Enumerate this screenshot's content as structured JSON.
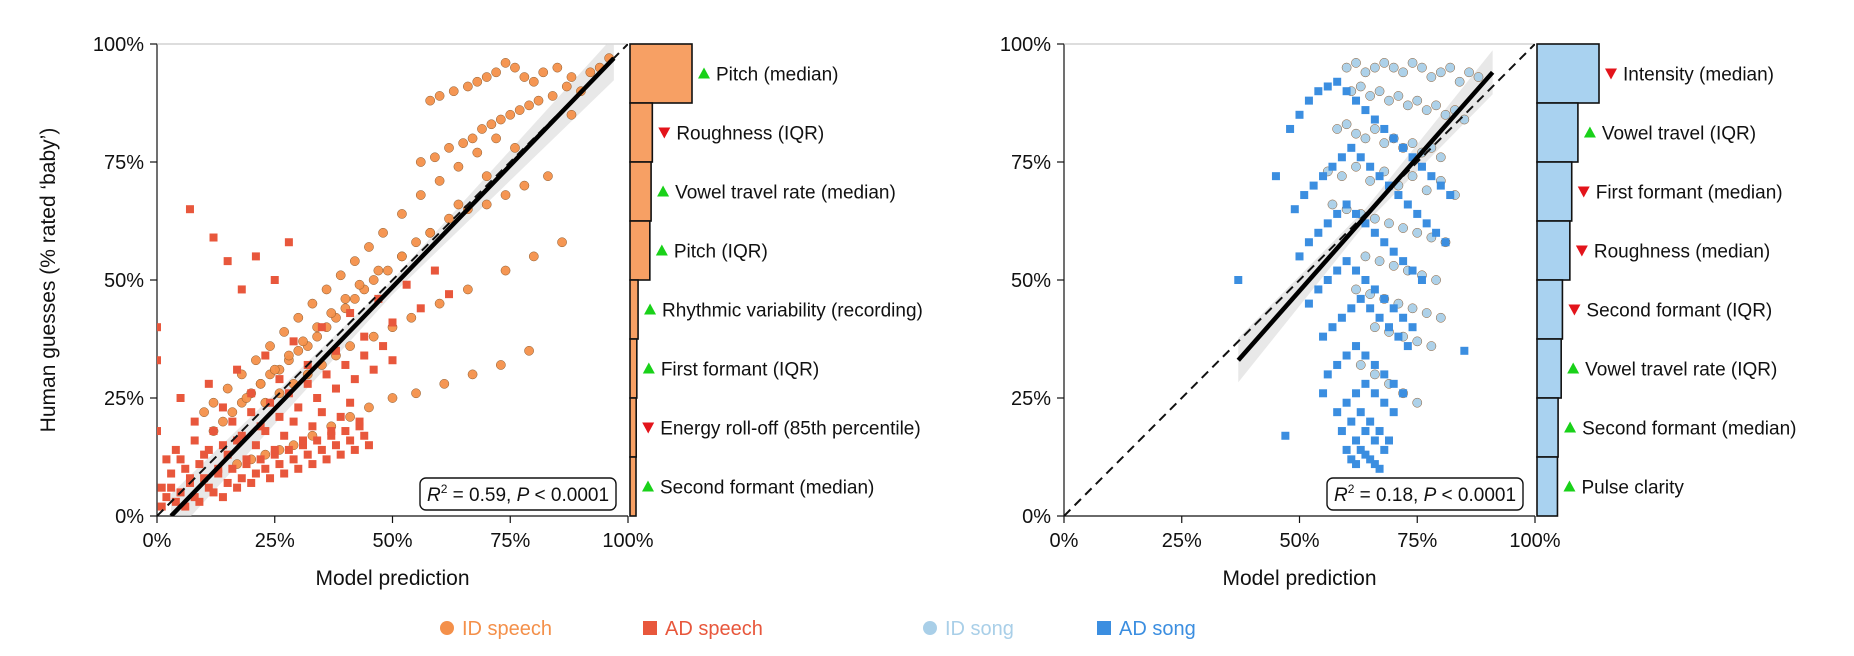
{
  "chart_data": [
    {
      "type": "scatter",
      "panel": "left",
      "xlabel": "Model prediction",
      "ylabel": "Human guesses (% rated ‘baby’)",
      "xlim": [
        0,
        100
      ],
      "ylim": [
        0,
        100
      ],
      "x_ticks": [
        "0%",
        "25%",
        "50%",
        "75%",
        "100%"
      ],
      "y_ticks": [
        "0%",
        "25%",
        "50%",
        "75%",
        "100%"
      ],
      "annotation": {
        "r2": "0.59",
        "p": "0.0001"
      },
      "fit_line": {
        "x": [
          3,
          97
        ],
        "y": [
          0,
          97
        ]
      },
      "identity_line": {
        "x": [
          0,
          100
        ],
        "y": [
          0,
          100
        ]
      },
      "series": [
        {
          "name": "ID speech",
          "marker": "circle",
          "color": "#f4904a",
          "x": [
            94,
            92,
            88,
            85,
            82,
            80,
            78,
            76,
            74,
            72,
            70,
            68,
            66,
            63,
            60,
            58,
            96,
            90,
            87,
            84,
            81,
            79,
            77,
            75,
            73,
            71,
            69,
            67,
            65,
            62,
            59,
            56,
            83,
            78,
            74,
            70,
            66,
            62,
            58,
            55,
            52,
            49,
            46,
            44,
            42,
            40,
            38,
            36,
            34,
            32,
            30,
            28,
            26,
            24,
            22,
            20,
            18,
            16,
            14,
            12,
            72,
            68,
            64,
            60,
            56,
            52,
            48,
            45,
            42,
            39,
            36,
            33,
            30,
            27,
            24,
            21,
            18,
            15,
            12,
            10,
            88,
            76,
            70,
            64,
            58,
            52,
            47,
            43,
            40,
            37,
            34,
            31,
            28,
            25,
            22,
            19,
            86,
            80,
            74,
            66,
            60,
            54,
            50,
            46,
            41,
            38,
            35,
            32,
            29,
            26,
            23,
            79,
            73,
            67,
            61,
            55,
            50,
            45,
            41,
            37,
            33,
            29,
            26,
            23,
            20,
            17
          ],
          "y": [
            95,
            94,
            93,
            95,
            94,
            92,
            93,
            95,
            96,
            94,
            93,
            92,
            91,
            90,
            89,
            88,
            97,
            90,
            91,
            89,
            88,
            87,
            86,
            85,
            84,
            83,
            82,
            80,
            79,
            78,
            76,
            75,
            72,
            70,
            68,
            66,
            65,
            63,
            60,
            58,
            55,
            52,
            50,
            48,
            46,
            44,
            42,
            40,
            38,
            36,
            35,
            33,
            31,
            30,
            28,
            26,
            24,
            22,
            20,
            18,
            80,
            77,
            74,
            71,
            68,
            64,
            60,
            57,
            54,
            51,
            48,
            45,
            42,
            39,
            36,
            33,
            30,
            27,
            24,
            22,
            85,
            78,
            72,
            66,
            60,
            55,
            52,
            49,
            46,
            43,
            40,
            37,
            34,
            31,
            28,
            25,
            58,
            55,
            52,
            48,
            45,
            42,
            40,
            38,
            36,
            34,
            32,
            30,
            28,
            26,
            24,
            35,
            32,
            30,
            28,
            26,
            25,
            23,
            21,
            19,
            17,
            15,
            14,
            13,
            12,
            11
          ]
        },
        {
          "name": "AD speech",
          "marker": "square",
          "color": "#e8573c",
          "x": [
            1,
            2,
            3,
            4,
            5,
            6,
            7,
            8,
            9,
            10,
            11,
            12,
            13,
            14,
            15,
            16,
            17,
            18,
            19,
            20,
            21,
            22,
            23,
            24,
            25,
            26,
            27,
            28,
            29,
            30,
            31,
            32,
            33,
            34,
            35,
            36,
            37,
            38,
            39,
            40,
            41,
            42,
            43,
            44,
            45,
            2,
            4,
            6,
            8,
            10,
            12,
            14,
            16,
            18,
            20,
            22,
            24,
            26,
            28,
            30,
            32,
            34,
            36,
            38,
            40,
            42,
            44,
            46,
            48,
            50,
            1,
            3,
            5,
            7,
            9,
            11,
            13,
            15,
            17,
            19,
            21,
            23,
            25,
            27,
            29,
            31,
            33,
            35,
            37,
            39,
            41,
            43,
            5,
            8,
            11,
            14,
            17,
            20,
            23,
            26,
            29,
            32,
            35,
            38,
            41,
            44,
            47,
            50,
            53,
            56,
            59,
            62,
            0,
            0,
            0,
            7,
            12,
            15,
            18,
            21,
            25,
            28
          ],
          "y": [
            2,
            4,
            6,
            3,
            5,
            2,
            7,
            4,
            3,
            8,
            6,
            5,
            9,
            4,
            7,
            10,
            6,
            8,
            11,
            7,
            9,
            12,
            10,
            8,
            13,
            11,
            9,
            14,
            12,
            10,
            15,
            13,
            11,
            16,
            14,
            12,
            17,
            15,
            13,
            18,
            16,
            14,
            19,
            17,
            15,
            12,
            14,
            10,
            16,
            13,
            18,
            15,
            20,
            17,
            22,
            19,
            24,
            21,
            26,
            23,
            28,
            25,
            30,
            27,
            32,
            29,
            34,
            31,
            36,
            33,
            6,
            9,
            12,
            8,
            11,
            14,
            10,
            13,
            16,
            12,
            15,
            18,
            14,
            17,
            20,
            16,
            19,
            22,
            18,
            21,
            24,
            20,
            25,
            20,
            28,
            23,
            31,
            26,
            34,
            29,
            37,
            32,
            40,
            35,
            43,
            38,
            46,
            41,
            49,
            44,
            52,
            47,
            40,
            33,
            18,
            65,
            59,
            54,
            48,
            55,
            50,
            58
          ]
        }
      ],
      "importance": [
        {
          "feature": "Pitch (median)",
          "direction": "up",
          "value": 1.0
        },
        {
          "feature": "Roughness (IQR)",
          "direction": "down",
          "value": 0.36
        },
        {
          "feature": "Vowel travel rate (median)",
          "direction": "up",
          "value": 0.34
        },
        {
          "feature": "Pitch (IQR)",
          "direction": "up",
          "value": 0.32
        },
        {
          "feature": "Rhythmic variability (recording)",
          "direction": "up",
          "value": 0.13
        },
        {
          "feature": "First formant (IQR)",
          "direction": "up",
          "value": 0.11
        },
        {
          "feature": "Energy roll-off (85th percentile)",
          "direction": "down",
          "value": 0.1
        },
        {
          "feature": "Second formant (median)",
          "direction": "up",
          "value": 0.09
        }
      ]
    },
    {
      "type": "scatter",
      "panel": "right",
      "xlabel": "Model prediction",
      "ylabel": "",
      "xlim": [
        0,
        100
      ],
      "ylim": [
        0,
        100
      ],
      "x_ticks": [
        "0%",
        "25%",
        "50%",
        "75%",
        "100%"
      ],
      "y_ticks": [
        "0%",
        "25%",
        "50%",
        "75%",
        "100%"
      ],
      "annotation": {
        "r2": "0.18",
        "p": "0.0001"
      },
      "fit_line": {
        "x": [
          37,
          91
        ],
        "y": [
          33,
          94
        ]
      },
      "identity_line": {
        "x": [
          0,
          100
        ],
        "y": [
          0,
          100
        ]
      },
      "series": [
        {
          "name": "ID song",
          "marker": "circle",
          "color": "#a9cfe8",
          "x": [
            60,
            62,
            64,
            66,
            68,
            70,
            72,
            74,
            76,
            78,
            80,
            82,
            84,
            86,
            88,
            61,
            63,
            65,
            67,
            69,
            71,
            73,
            75,
            77,
            79,
            81,
            83,
            85,
            58,
            60,
            62,
            64,
            66,
            68,
            70,
            72,
            74,
            76,
            78,
            80,
            56,
            59,
            62,
            65,
            68,
            71,
            74,
            77,
            80,
            83,
            57,
            60,
            63,
            66,
            69,
            72,
            75,
            78,
            81,
            64,
            67,
            70,
            73,
            76,
            79,
            62,
            65,
            68,
            71,
            74,
            77,
            80,
            66,
            69,
            72,
            75,
            78,
            63,
            66,
            69,
            72,
            75
          ],
          "y": [
            95,
            96,
            94,
            95,
            96,
            95,
            94,
            96,
            95,
            93,
            94,
            95,
            92,
            94,
            93,
            90,
            91,
            89,
            90,
            88,
            89,
            87,
            88,
            86,
            87,
            85,
            86,
            84,
            82,
            83,
            81,
            80,
            82,
            79,
            80,
            78,
            79,
            77,
            78,
            76,
            73,
            72,
            74,
            71,
            73,
            70,
            72,
            69,
            71,
            68,
            66,
            65,
            64,
            63,
            62,
            61,
            60,
            59,
            58,
            55,
            54,
            53,
            52,
            51,
            50,
            48,
            47,
            46,
            45,
            44,
            43,
            42,
            40,
            39,
            38,
            37,
            36,
            32,
            30,
            28,
            26,
            24
          ]
        },
        {
          "name": "AD song",
          "marker": "square",
          "color": "#3b8ee0",
          "x": [
            37,
            45,
            48,
            50,
            52,
            54,
            56,
            58,
            60,
            62,
            64,
            66,
            68,
            70,
            72,
            74,
            76,
            78,
            80,
            82,
            49,
            51,
            53,
            55,
            57,
            59,
            61,
            63,
            65,
            67,
            69,
            71,
            73,
            75,
            77,
            79,
            81,
            50,
            52,
            54,
            56,
            58,
            60,
            62,
            64,
            66,
            68,
            70,
            72,
            74,
            76,
            52,
            54,
            56,
            58,
            60,
            62,
            64,
            66,
            68,
            70,
            72,
            74,
            55,
            57,
            59,
            61,
            63,
            65,
            67,
            69,
            71,
            73,
            56,
            58,
            60,
            62,
            64,
            66,
            68,
            70,
            72,
            58,
            60,
            62,
            64,
            66,
            68,
            70,
            59,
            61,
            63,
            65,
            67,
            69,
            60,
            62,
            64,
            66,
            68,
            61,
            63,
            65,
            67,
            62,
            64,
            66,
            85,
            47,
            55
          ],
          "y": [
            50,
            72,
            82,
            85,
            88,
            90,
            91,
            92,
            90,
            88,
            86,
            84,
            82,
            80,
            78,
            76,
            74,
            72,
            70,
            68,
            65,
            68,
            70,
            72,
            74,
            76,
            78,
            76,
            74,
            72,
            70,
            68,
            66,
            64,
            62,
            60,
            58,
            55,
            58,
            60,
            62,
            64,
            66,
            64,
            62,
            60,
            58,
            56,
            54,
            52,
            50,
            45,
            48,
            50,
            52,
            54,
            52,
            50,
            48,
            46,
            44,
            42,
            40,
            38,
            40,
            42,
            44,
            46,
            44,
            42,
            40,
            38,
            36,
            30,
            32,
            34,
            36,
            34,
            32,
            30,
            28,
            26,
            22,
            24,
            26,
            28,
            26,
            24,
            22,
            18,
            20,
            22,
            20,
            18,
            16,
            14,
            16,
            18,
            16,
            14,
            12,
            14,
            12,
            10,
            11,
            13,
            11,
            35,
            17,
            26
          ]
        }
      ],
      "importance": [
        {
          "feature": "Intensity (median)",
          "direction": "down",
          "value": 1.0
        },
        {
          "feature": "Vowel travel (IQR)",
          "direction": "up",
          "value": 0.66
        },
        {
          "feature": "First formant (median)",
          "direction": "down",
          "value": 0.56
        },
        {
          "feature": "Roughness (median)",
          "direction": "down",
          "value": 0.53
        },
        {
          "feature": "Second formant (IQR)",
          "direction": "down",
          "value": 0.41
        },
        {
          "feature": "Vowel travel rate (IQR)",
          "direction": "up",
          "value": 0.39
        },
        {
          "feature": "Second formant (median)",
          "direction": "up",
          "value": 0.34
        },
        {
          "feature": "Pulse clarity",
          "direction": "up",
          "value": 0.33
        }
      ]
    }
  ],
  "legend": {
    "position": "bottom",
    "items": [
      {
        "label": "ID speech",
        "marker": "circle",
        "color": "#f4904a"
      },
      {
        "label": "AD speech",
        "marker": "square",
        "color": "#e8573c"
      },
      {
        "label": "ID song",
        "marker": "circle",
        "color": "#a9cfe8"
      },
      {
        "label": "AD song",
        "marker": "square",
        "color": "#3b8ee0"
      }
    ]
  },
  "colors": {
    "up_arrow": "#19d119",
    "down_arrow": "#e3141b",
    "left_bar": "#f7a064",
    "right_bar": "#a9d2f0"
  }
}
